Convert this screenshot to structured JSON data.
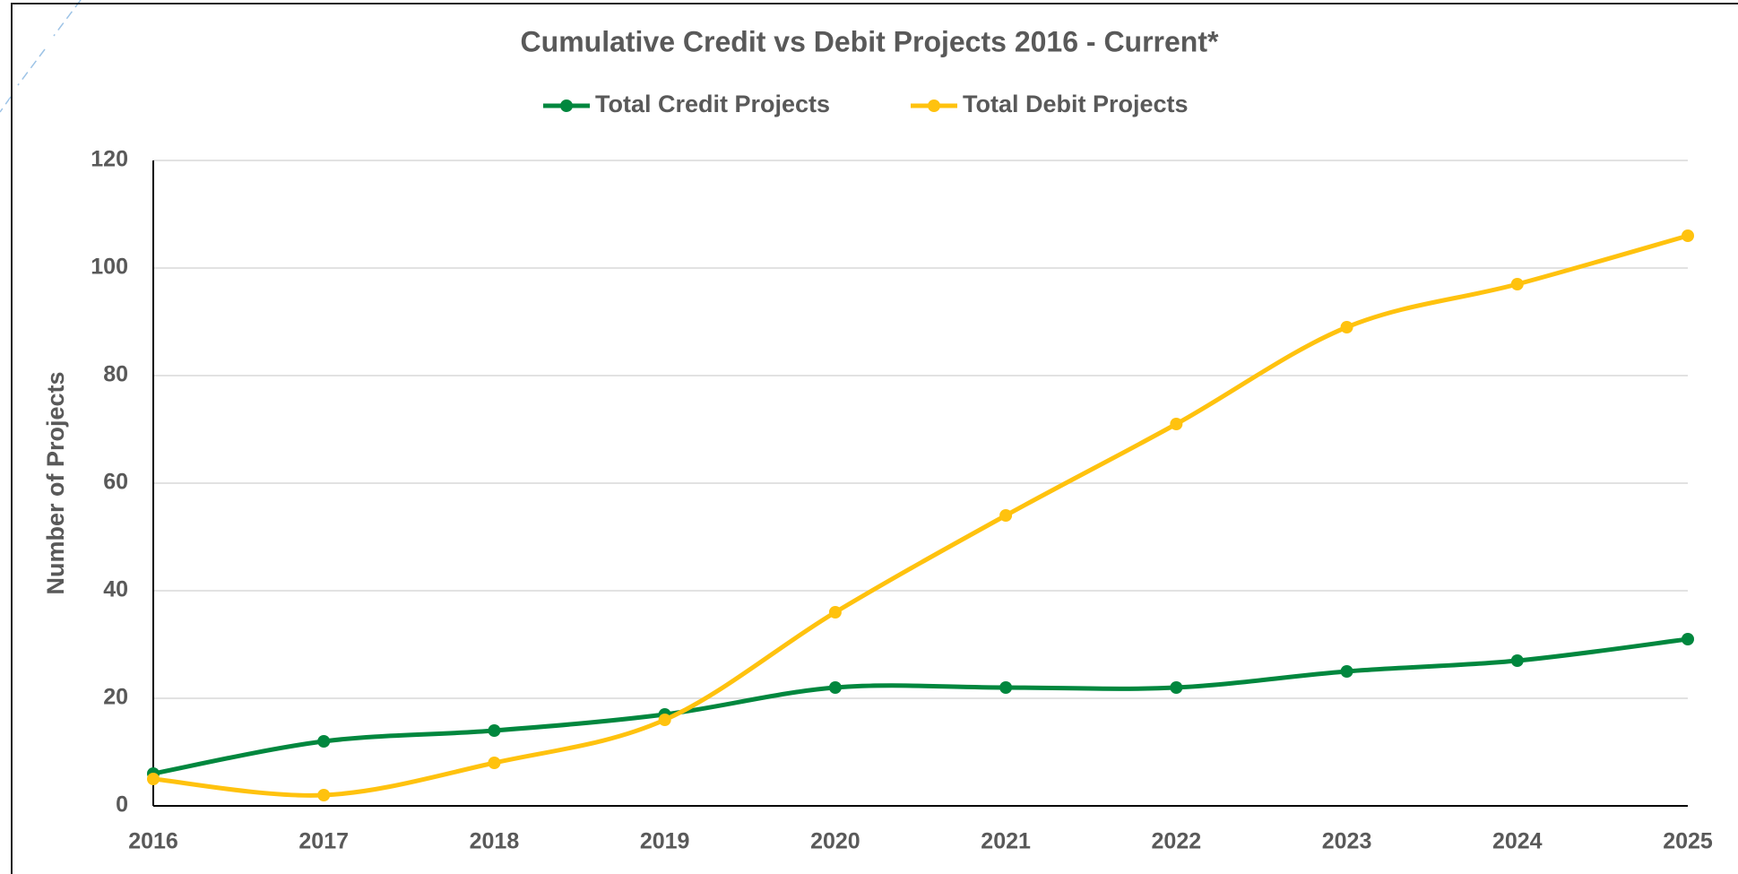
{
  "chart_data": {
    "type": "line",
    "title": "Cumulative Credit vs Debit Projects 2016 - Current*",
    "y_label": "Number of Projects",
    "categories": [
      "2016",
      "2017",
      "2018",
      "2019",
      "2020",
      "2021",
      "2022",
      "2023",
      "2024",
      "2025"
    ],
    "series": [
      {
        "name": "Total Credit Projects",
        "color": "#00873e",
        "values": [
          6,
          12,
          14,
          17,
          22,
          22,
          22,
          25,
          27,
          31
        ]
      },
      {
        "name": "Total Debit Projects",
        "color": "#ffc20e",
        "values": [
          5,
          2,
          8,
          16,
          36,
          54,
          71,
          89,
          97,
          106
        ]
      }
    ],
    "ylim": [
      0,
      120
    ],
    "yticks": [
      0,
      20,
      40,
      60,
      80,
      100,
      120
    ],
    "grid": true,
    "legend": "top",
    "smooth": true
  }
}
